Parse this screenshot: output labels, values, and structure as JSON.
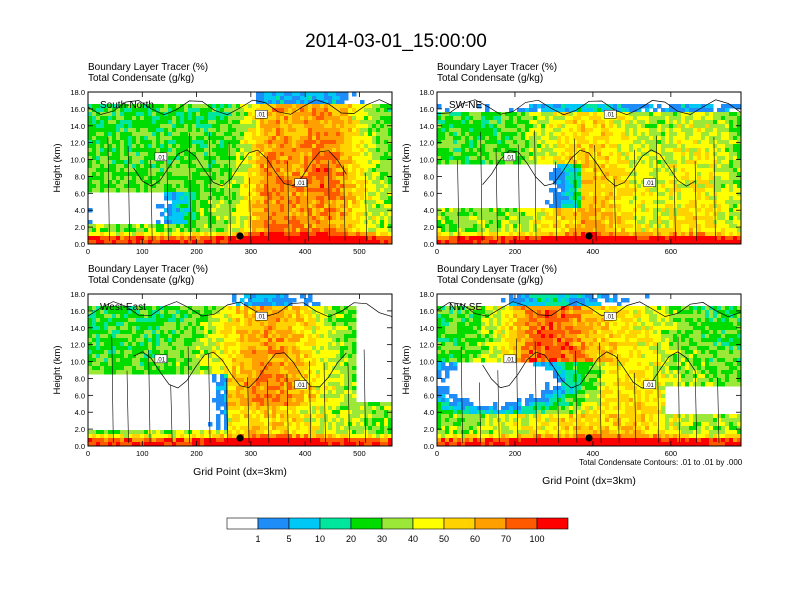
{
  "title": "2014-03-01_15:00:00",
  "colors": {
    "bins": [
      "#ffffff",
      "#1f8df7",
      "#00c8f6",
      "#00e69c",
      "#00dc00",
      "#9be839",
      "#ffff00",
      "#ffd200",
      "#ffa000",
      "#ff5a00",
      "#ff0000"
    ],
    "contour": "#000000",
    "marker": "#000000"
  },
  "colorbar": {
    "labels": [
      "1",
      "5",
      "10",
      "20",
      "30",
      "40",
      "50",
      "60",
      "70",
      "100"
    ]
  },
  "footnote": "Total Condensate Contours: .01 to .01 by .000",
  "x_axis_label": "Grid Point (dx=3km)",
  "chart_data": [
    {
      "type": "heatmap",
      "panel_label": "South-North",
      "line1": "Boundary Layer Tracer   (%)",
      "line2": "Total Condensate   (g/kg)",
      "ylabel": "Height (km)",
      "xlim": [
        0,
        560
      ],
      "ylim": [
        0,
        18
      ],
      "xticks": [
        "0",
        "100",
        "200",
        "300",
        "400",
        "500"
      ],
      "yticks": [
        "0.0",
        "2.0",
        "4.0",
        "6.0",
        "8.0",
        "10.0",
        "12.0",
        "14.0",
        "16.0",
        "18.0"
      ],
      "contour_label": ".01",
      "marker_x": 280
    },
    {
      "type": "heatmap",
      "panel_label": "SW-NE",
      "line1": "Boundary Layer Tracer   (%)",
      "line2": "Total Condensate   (g/kg)",
      "ylabel": "Height (km)",
      "xlim": [
        0,
        780
      ],
      "ylim": [
        0,
        18
      ],
      "xticks": [
        "0",
        "200",
        "400",
        "600"
      ],
      "yticks": [
        "0.0",
        "2.0",
        "4.0",
        "6.0",
        "8.0",
        "10.0",
        "12.0",
        "14.0",
        "16.0",
        "18.0"
      ],
      "contour_label": ".01",
      "marker_x": 390
    },
    {
      "type": "heatmap",
      "panel_label": "West-East",
      "line1": "Boundary Layer Tracer   (%)",
      "line2": "Total Condensate   (g/kg)",
      "ylabel": "Height (km)",
      "xlim": [
        0,
        560
      ],
      "ylim": [
        0,
        18
      ],
      "xticks": [
        "0",
        "100",
        "200",
        "300",
        "400",
        "500"
      ],
      "yticks": [
        "0.0",
        "2.0",
        "4.0",
        "6.0",
        "8.0",
        "10.0",
        "12.0",
        "14.0",
        "16.0",
        "18.0"
      ],
      "contour_label": ".01",
      "marker_x": 280
    },
    {
      "type": "heatmap",
      "panel_label": "NW-SE",
      "line1": "Boundary Layer Tracer   (%)",
      "line2": "Total Condensate   (g/kg)",
      "ylabel": "Height (km)",
      "xlim": [
        0,
        780
      ],
      "ylim": [
        0,
        18
      ],
      "xticks": [
        "0",
        "200",
        "400",
        "600"
      ],
      "yticks": [
        "0.0",
        "2.0",
        "4.0",
        "6.0",
        "8.0",
        "10.0",
        "12.0",
        "14.0",
        "16.0",
        "18.0"
      ],
      "contour_label": ".01",
      "marker_x": 390
    }
  ]
}
